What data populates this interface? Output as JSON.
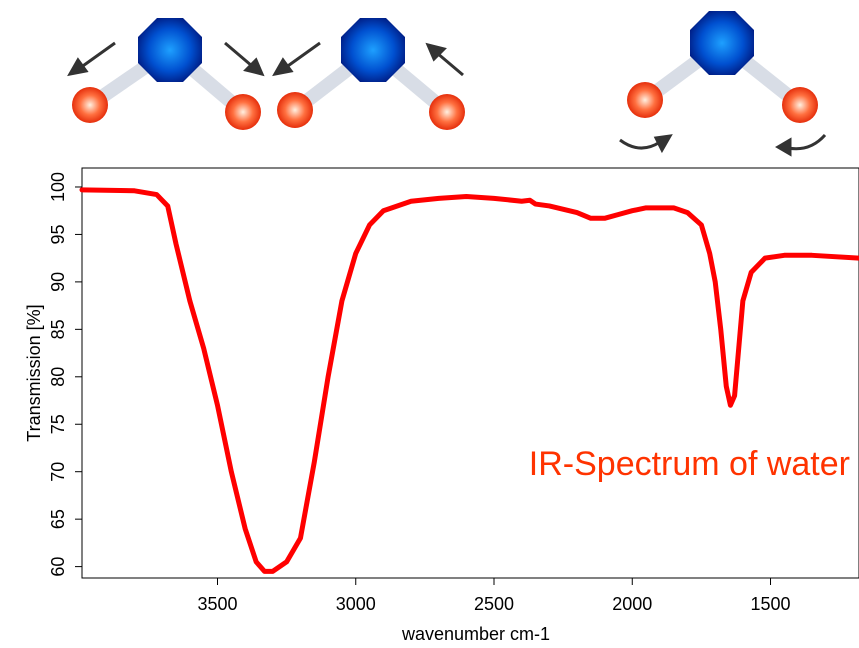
{
  "chart_data": {
    "type": "line",
    "annotation": "IR-Spectrum of water",
    "xlabel": "wavenumber cm-1",
    "ylabel": "Transmission [%]",
    "color": "#ff0000",
    "annotation_color": "#ff3300",
    "x": [
      3990,
      3800,
      3720,
      3680,
      3650,
      3600,
      3550,
      3500,
      3450,
      3400,
      3360,
      3330,
      3300,
      3250,
      3200,
      3150,
      3100,
      3050,
      3000,
      2950,
      2900,
      2800,
      2700,
      2600,
      2500,
      2400,
      2370,
      2350,
      2300,
      2200,
      2150,
      2100,
      2050,
      2000,
      1950,
      1850,
      1800,
      1750,
      1720,
      1700,
      1680,
      1660,
      1645,
      1630,
      1615,
      1600,
      1570,
      1520,
      1450,
      1350,
      1180
    ],
    "values": [
      99.7,
      99.6,
      99.2,
      98,
      94,
      88,
      83,
      77,
      70,
      64,
      60.5,
      59.5,
      59.5,
      60.5,
      63,
      71,
      80,
      88,
      93,
      96,
      97.5,
      98.5,
      98.8,
      99,
      98.8,
      98.5,
      98.6,
      98.2,
      98,
      97.3,
      96.7,
      96.7,
      97.1,
      97.5,
      97.8,
      97.8,
      97.3,
      96,
      93,
      90,
      85,
      79,
      77,
      78,
      83,
      88,
      91,
      92.5,
      92.8,
      92.8,
      92.5
    ],
    "xlim": [
      3990,
      1180
    ],
    "ylim": [
      58.8,
      102
    ],
    "xticks": [
      3500,
      3000,
      2500,
      2000,
      1500
    ],
    "yticks": [
      60,
      65,
      70,
      75,
      80,
      85,
      90,
      95,
      100
    ]
  }
}
